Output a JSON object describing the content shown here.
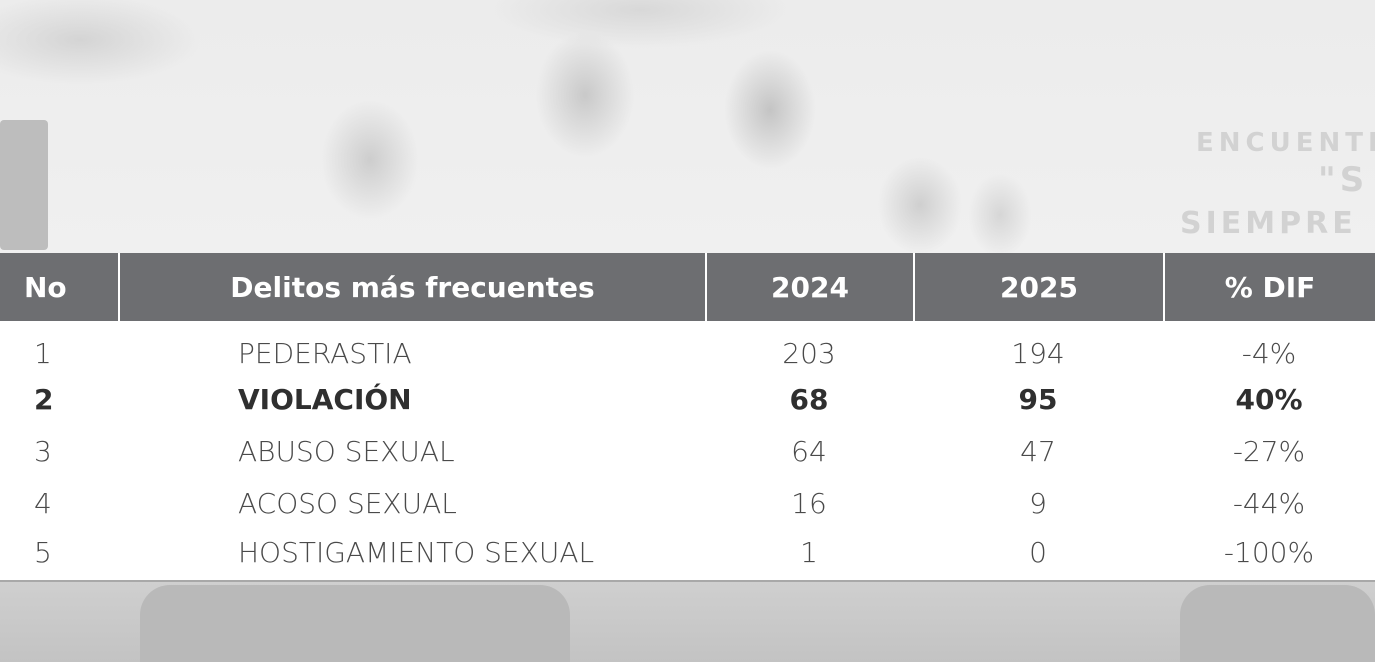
{
  "background": {
    "banner_lines": [
      "ENCUENTR",
      "\"S",
      "SIEMPRE"
    ]
  },
  "table": {
    "headers": {
      "no": "No",
      "delito": "Delitos más frecuentes",
      "y2024": "2024",
      "y2025": "2025",
      "dif": "% DIF"
    },
    "rows": [
      {
        "no": "1",
        "delito": "PEDERASTIA",
        "y2024": "203",
        "y2025": "194",
        "dif": "-4%"
      },
      {
        "no": "2",
        "delito": "VIOLACIÓN",
        "y2024": "68",
        "y2025": "95",
        "dif": "40%"
      },
      {
        "no": "3",
        "delito": "ABUSO SEXUAL",
        "y2024": "64",
        "y2025": "47",
        "dif": "-27%"
      },
      {
        "no": "4",
        "delito": "ACOSO SEXUAL",
        "y2024": "16",
        "y2025": "9",
        "dif": "-44%"
      },
      {
        "no": "5",
        "delito": "HOSTIGAMIENTO SEXUAL",
        "y2024": "1",
        "y2025": "0",
        "dif": "-100%"
      }
    ],
    "highlighted_row": 2
  },
  "colors": {
    "header_bg": "#6d6e71",
    "header_text": "#ffffff",
    "body_text": "#4a4a4a"
  }
}
